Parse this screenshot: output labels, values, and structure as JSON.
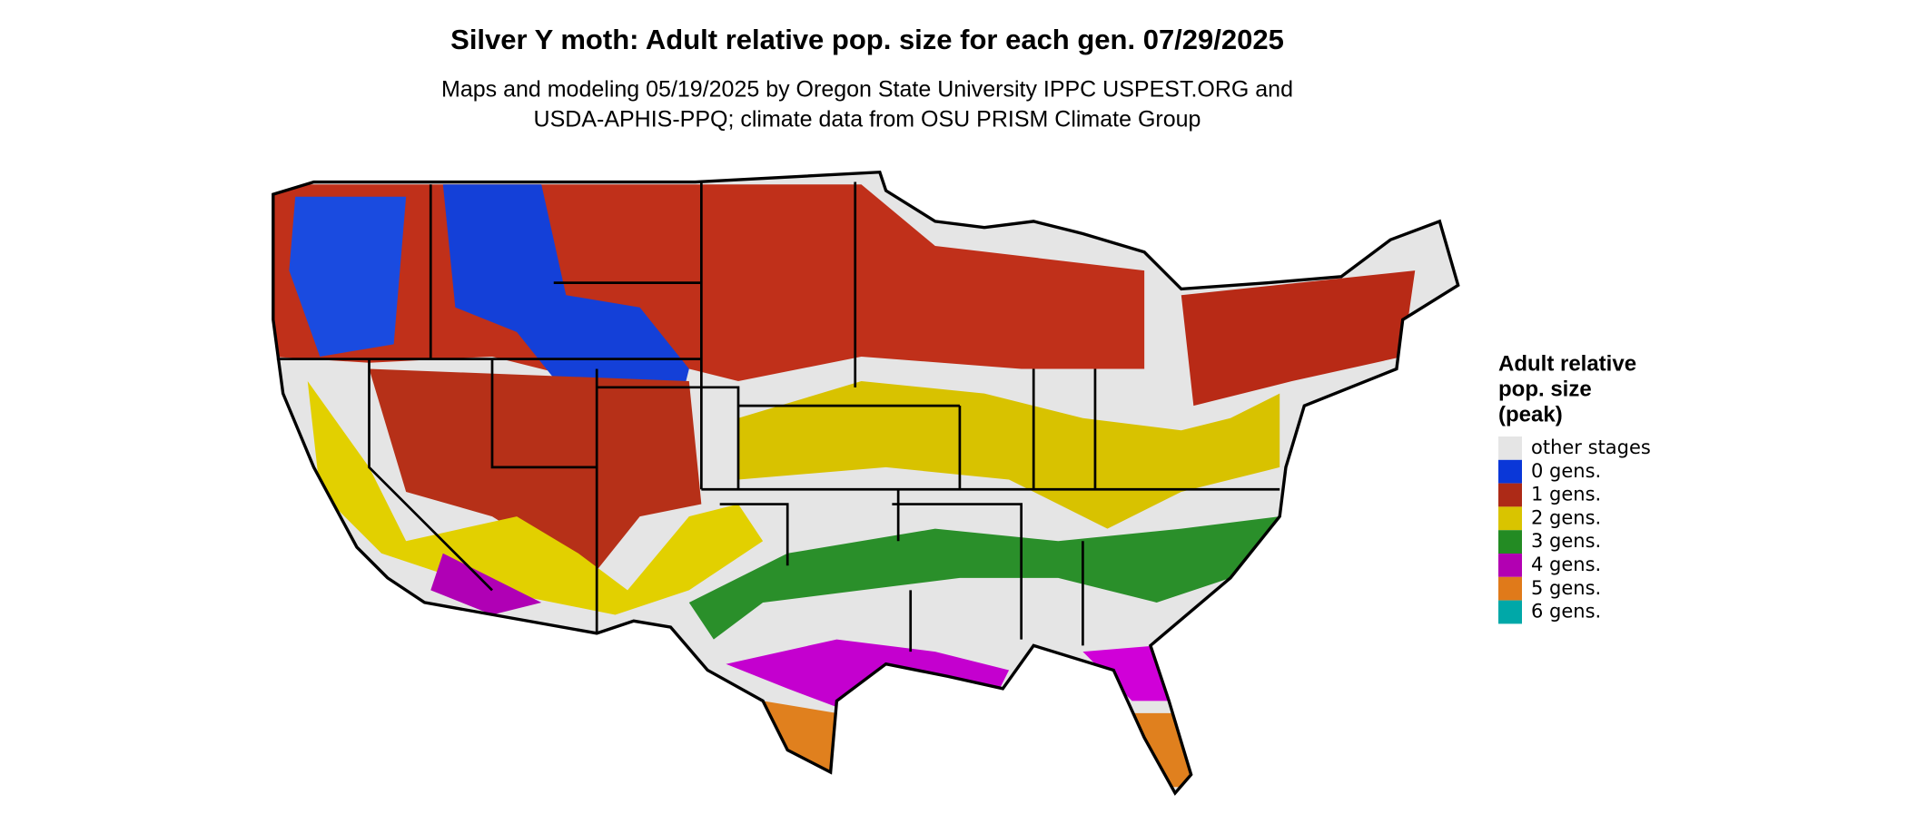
{
  "title": "Silver Y moth: Adult relative pop. size for each gen. 07/29/2025",
  "subtitle": [
    "Maps and modeling 05/19/2025 by Oregon State University IPPC USPEST.ORG and",
    "USDA-APHIS-PPQ; climate data from OSU PRISM Climate Group"
  ],
  "legend": {
    "title": [
      "Adult relative",
      "pop. size",
      "(peak)"
    ],
    "items": [
      {
        "label": "other stages",
        "color": "#e5e5e5"
      },
      {
        "label": "0 gens.",
        "color": "#0a37d8"
      },
      {
        "label": "1 gens.",
        "color": "#ad2a17"
      },
      {
        "label": "2 gens.",
        "color": "#d9c400"
      },
      {
        "label": "3 gens.",
        "color": "#238b23"
      },
      {
        "label": "4 gens.",
        "color": "#b200b2"
      },
      {
        "label": "5 gens.",
        "color": "#e07a1a"
      },
      {
        "label": "6 gens.",
        "color": "#00a8a8"
      }
    ]
  }
}
